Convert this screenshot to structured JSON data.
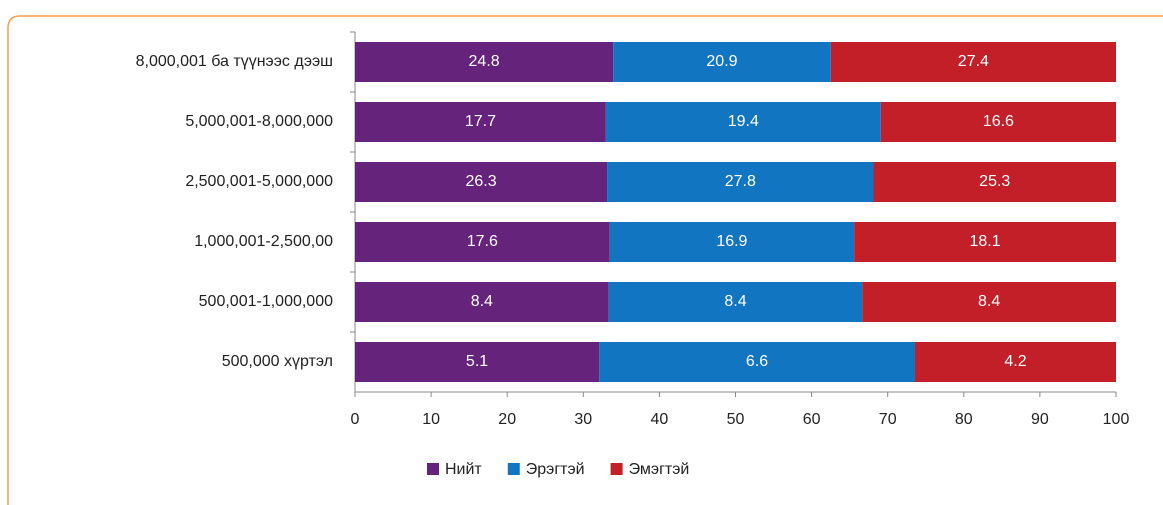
{
  "chart_data": {
    "type": "bar",
    "orientation": "horizontal",
    "stacking": "percent",
    "categories": [
      "8,000,001 ба түүнээс дээш",
      "5,000,001-8,000,000",
      "2,500,001-5,000,000",
      "1,000,001-2,500,00",
      "500,001-1,000,000",
      "500,000 хүртэл"
    ],
    "series": [
      {
        "name": "Нийт",
        "color": "#66237c",
        "values": [
          24.8,
          17.7,
          26.3,
          17.6,
          8.4,
          5.1
        ]
      },
      {
        "name": "Эрэгтэй",
        "color": "#1275c2",
        "values": [
          20.9,
          19.4,
          27.8,
          16.9,
          8.4,
          6.6
        ]
      },
      {
        "name": "Эмэгтэй",
        "color": "#c21f28",
        "values": [
          27.4,
          16.6,
          25.3,
          18.1,
          8.4,
          4.2
        ]
      }
    ],
    "xlim": [
      0,
      100
    ],
    "xticks": [
      0,
      10,
      20,
      30,
      40,
      50,
      60,
      70,
      80,
      90,
      100
    ],
    "legend": "bottom"
  }
}
